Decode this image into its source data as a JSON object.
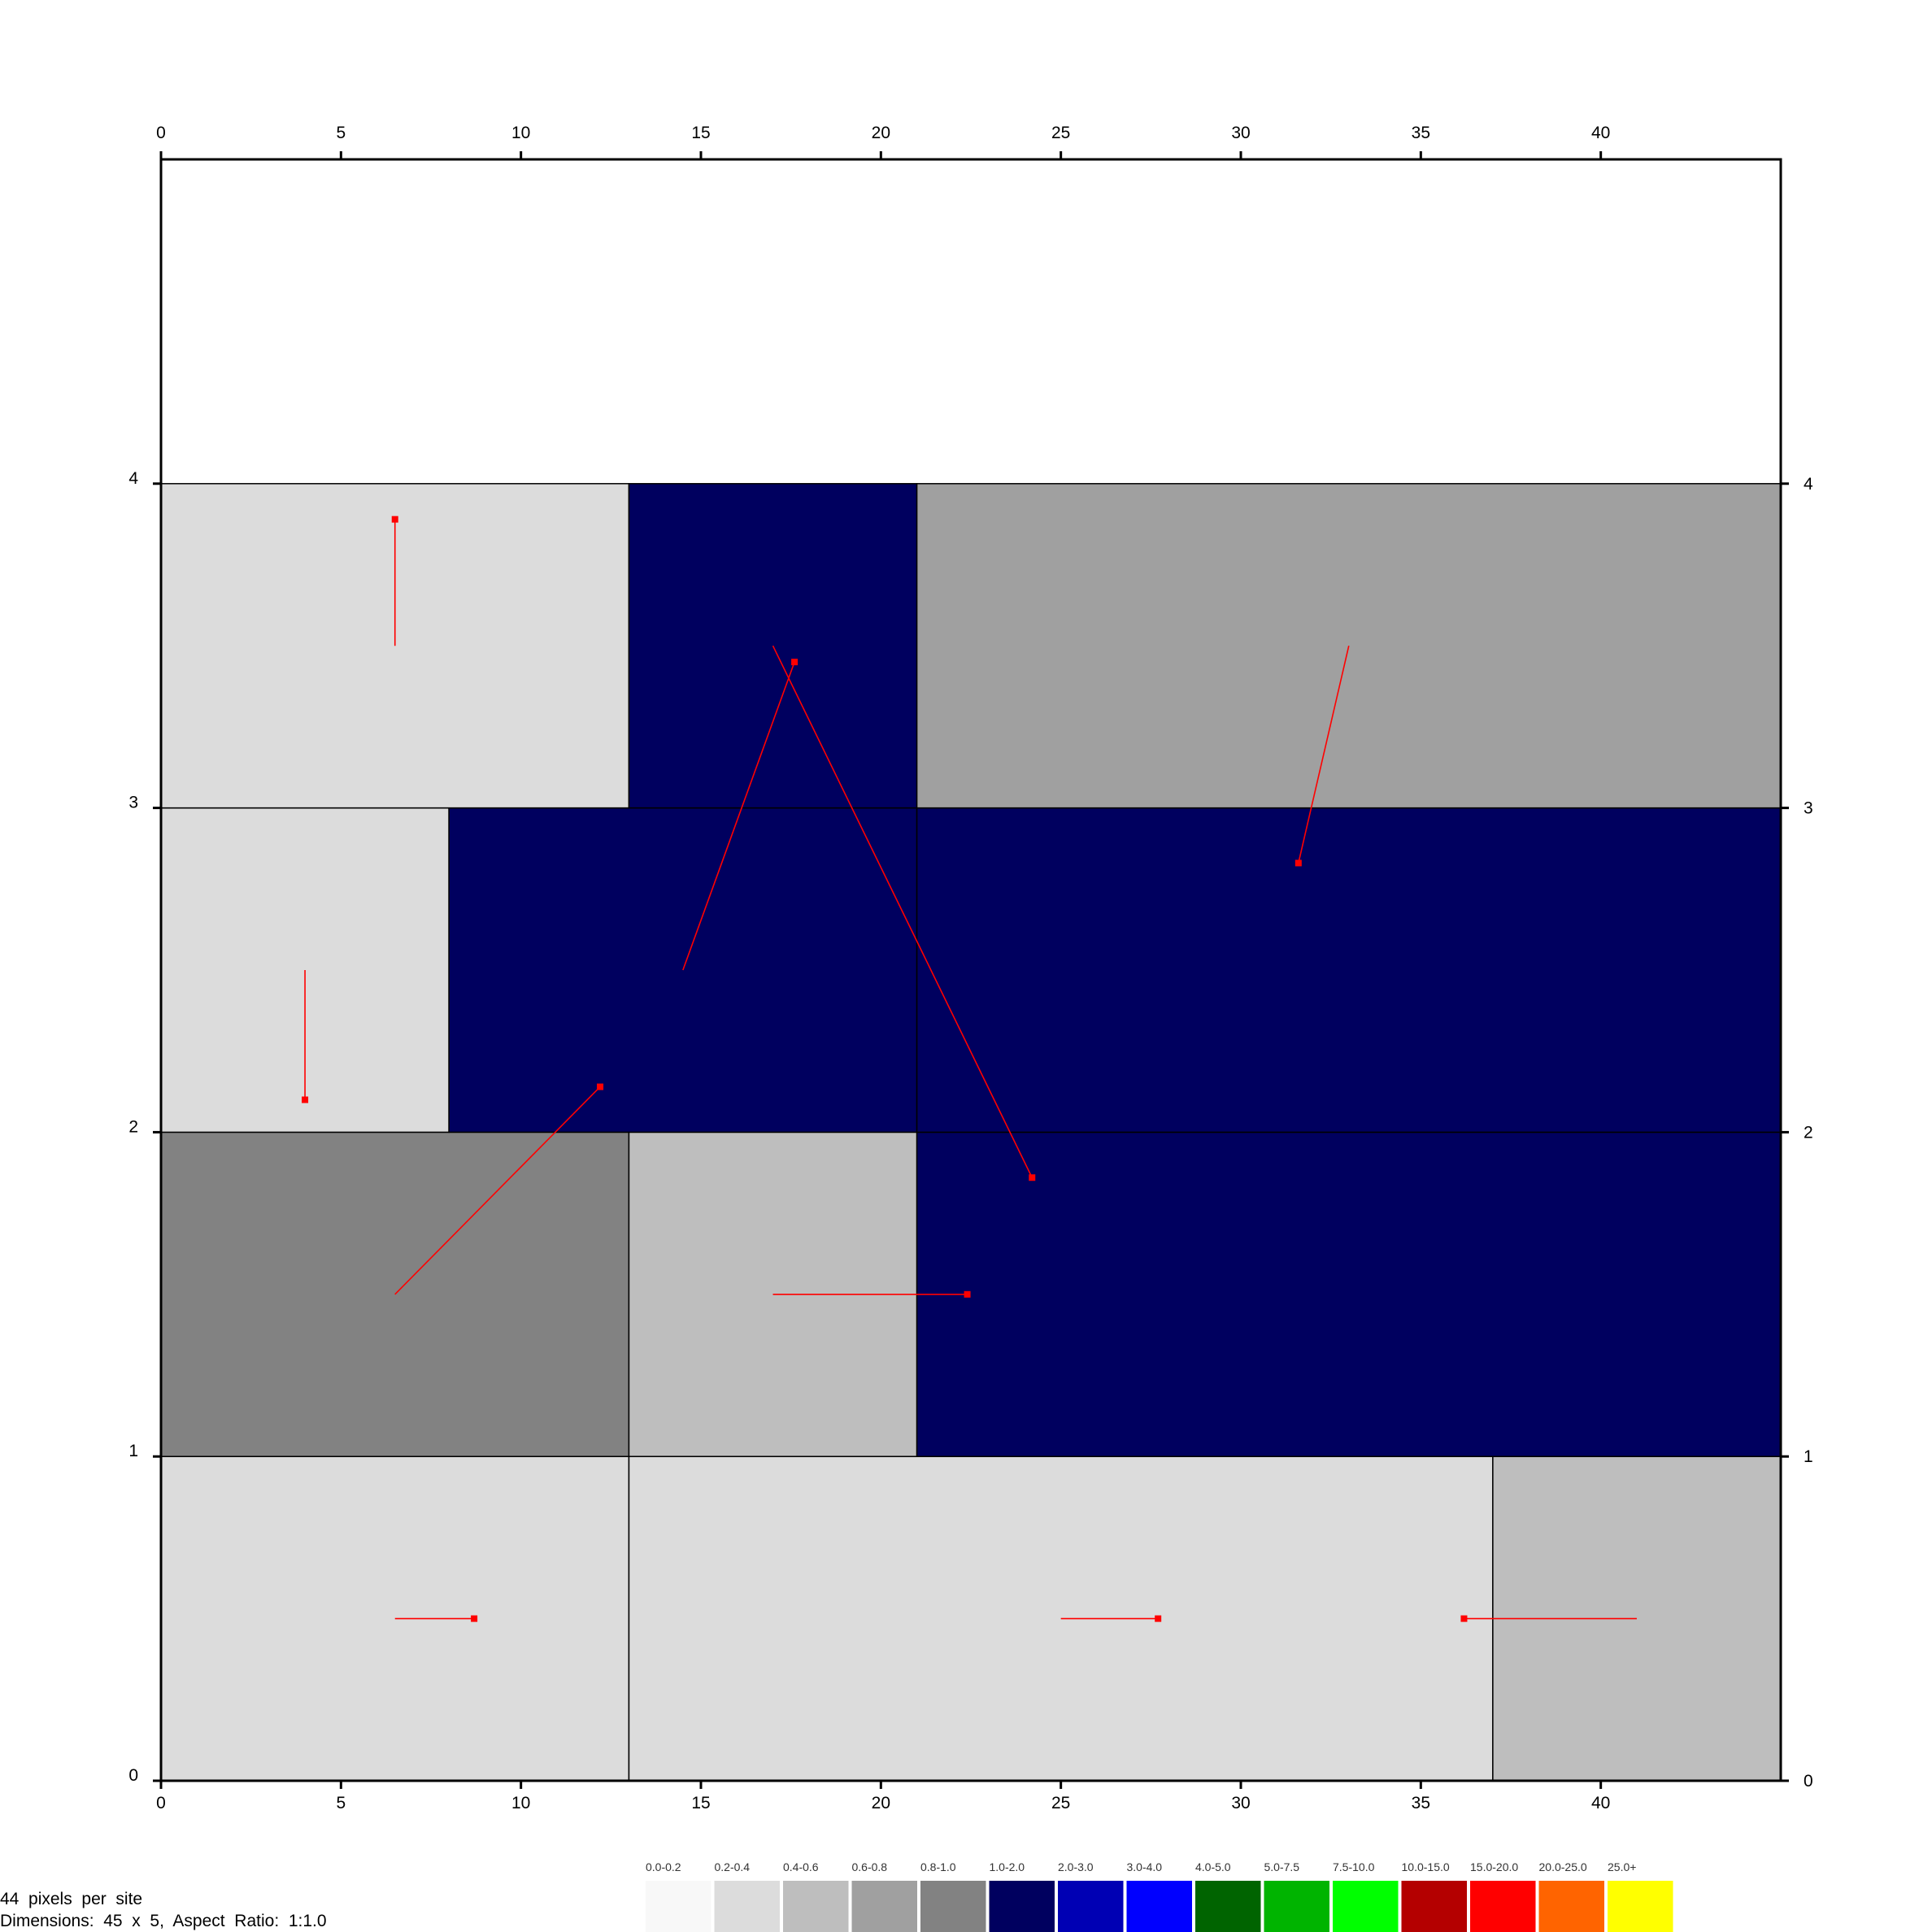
{
  "chart_data": {
    "type": "heatmap",
    "title": "",
    "xlabel": "",
    "ylabel": "",
    "xlim": [
      0,
      45
    ],
    "ylim": [
      0,
      5
    ],
    "x_ticks": [
      0,
      5,
      10,
      15,
      20,
      25,
      30,
      35,
      40
    ],
    "y_ticks": [
      0,
      1,
      2,
      3,
      4
    ],
    "grid": false,
    "cells": [
      {
        "row": 0,
        "x_start": 0,
        "x_end": 13,
        "class": "0.2-0.4"
      },
      {
        "row": 0,
        "x_start": 13,
        "x_end": 37,
        "class": "0.2-0.4"
      },
      {
        "row": 0,
        "x_start": 37,
        "x_end": 45,
        "class": "0.4-0.6"
      },
      {
        "row": 1,
        "x_start": 0,
        "x_end": 13,
        "class": "0.8-1.0"
      },
      {
        "row": 1,
        "x_start": 13,
        "x_end": 21,
        "class": "0.4-0.6"
      },
      {
        "row": 1,
        "x_start": 21,
        "x_end": 45,
        "class": "1.0-2.0"
      },
      {
        "row": 2,
        "x_start": 0,
        "x_end": 8,
        "class": "0.2-0.4"
      },
      {
        "row": 2,
        "x_start": 8,
        "x_end": 21,
        "class": "1.0-2.0"
      },
      {
        "row": 2,
        "x_start": 21,
        "x_end": 45,
        "class": "1.0-2.0"
      },
      {
        "row": 3,
        "x_start": 0,
        "x_end": 13,
        "class": "0.2-0.4"
      },
      {
        "row": 3,
        "x_start": 13,
        "x_end": 21,
        "class": "1.0-2.0"
      },
      {
        "row": 3,
        "x_start": 21,
        "x_end": 45,
        "class": "0.6-0.8"
      }
    ],
    "vectors": [
      {
        "x0": 6.5,
        "y0": 0.5,
        "x1": 8.7,
        "y1": 0.5
      },
      {
        "x0": 25.0,
        "y0": 0.5,
        "x1": 27.7,
        "y1": 0.5
      },
      {
        "x0": 41.0,
        "y0": 0.5,
        "x1": 36.2,
        "y1": 0.5
      },
      {
        "x0": 6.5,
        "y0": 1.5,
        "x1": 12.2,
        "y1": 2.14
      },
      {
        "x0": 17.0,
        "y0": 1.5,
        "x1": 22.4,
        "y1": 1.5
      },
      {
        "x0": 4.0,
        "y0": 2.5,
        "x1": 4.0,
        "y1": 2.1
      },
      {
        "x0": 14.5,
        "y0": 2.5,
        "x1": 17.6,
        "y1": 3.45
      },
      {
        "x0": 33.0,
        "y0": 3.5,
        "x1": 31.6,
        "y1": 2.83
      },
      {
        "x0": 6.5,
        "y0": 3.5,
        "x1": 6.5,
        "y1": 3.89
      },
      {
        "x0": 17.0,
        "y0": 3.5,
        "x1": 24.2,
        "y1": 1.86
      }
    ],
    "vector_color": "#ff0000",
    "legend": {
      "placement": "bottom-right",
      "items": [
        {
          "label": "0.0-0.2",
          "color": "#f8f8f8"
        },
        {
          "label": "0.2-0.4",
          "color": "#dcdcdc"
        },
        {
          "label": "0.4-0.6",
          "color": "#bebebe"
        },
        {
          "label": "0.6-0.8",
          "color": "#a0a0a0"
        },
        {
          "label": "0.8-1.0",
          "color": "#828282"
        },
        {
          "label": "1.0-2.0",
          "color": "#00005f"
        },
        {
          "label": "2.0-3.0",
          "color": "#0000b4"
        },
        {
          "label": "3.0-4.0",
          "color": "#0000ff"
        },
        {
          "label": "4.0-5.0",
          "color": "#006400"
        },
        {
          "label": "5.0-7.5",
          "color": "#00b400"
        },
        {
          "label": "7.5-10.0",
          "color": "#00ff00"
        },
        {
          "label": "10.0-15.0",
          "color": "#b40000"
        },
        {
          "label": "15.0-20.0",
          "color": "#ff0000"
        },
        {
          "label": "20.0-25.0",
          "color": "#ff6400"
        },
        {
          "label": "25.0+",
          "color": "#ffff00"
        }
      ]
    }
  },
  "info": {
    "pixels_per_site": "44  pixels  per  site",
    "dimensions": "Dimensions:  45  x  5,  Aspect  Ratio:  1:1.0"
  }
}
